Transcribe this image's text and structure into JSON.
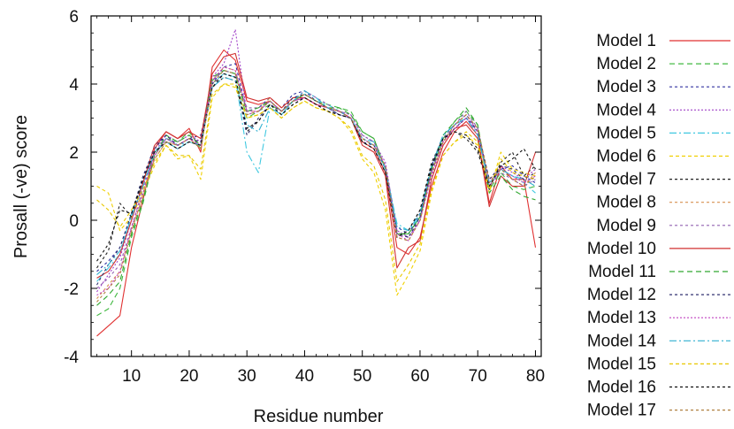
{
  "chart_data": {
    "type": "line",
    "title": "",
    "xlabel": "Residue number",
    "ylabel": "Prosall (-ve) score",
    "xlim": [
      3,
      81
    ],
    "ylim": [
      -4,
      6
    ],
    "xticks": [
      10,
      20,
      30,
      40,
      50,
      60,
      70,
      80
    ],
    "yticks": [
      -4,
      -2,
      0,
      2,
      4,
      6
    ],
    "grid": false,
    "legend_position": "right",
    "x": [
      4,
      6,
      8,
      10,
      12,
      14,
      16,
      18,
      20,
      22,
      24,
      26,
      28,
      30,
      32,
      34,
      36,
      38,
      40,
      42,
      44,
      46,
      48,
      50,
      52,
      54,
      56,
      58,
      60,
      62,
      64,
      66,
      68,
      70,
      72,
      74,
      76,
      78,
      80
    ],
    "series": [
      {
        "name": "Model 1",
        "color": "#e03030",
        "dash": "",
        "values": [
          -3.4,
          -3.1,
          -2.8,
          -0.8,
          0.6,
          2.1,
          2.6,
          2.4,
          2.7,
          2.0,
          4.5,
          5.0,
          4.7,
          3.5,
          3.4,
          3.5,
          3.2,
          3.5,
          3.6,
          3.4,
          3.3,
          3.2,
          3.0,
          2.3,
          2.1,
          1.4,
          -0.8,
          -1.0,
          -0.5,
          1.0,
          2.0,
          2.6,
          2.9,
          2.5,
          0.5,
          1.6,
          1.2,
          1.2,
          -0.8
        ]
      },
      {
        "name": "Model 2",
        "color": "#40b840",
        "dash": "6,4",
        "values": [
          -2.8,
          -2.6,
          -2.0,
          -0.5,
          0.5,
          1.9,
          2.4,
          2.3,
          2.6,
          2.1,
          4.1,
          4.4,
          4.3,
          3.0,
          3.2,
          3.4,
          3.2,
          3.5,
          3.7,
          3.5,
          3.4,
          3.3,
          3.2,
          2.6,
          2.4,
          1.5,
          -0.4,
          -0.4,
          0.1,
          1.4,
          2.4,
          2.9,
          3.2,
          2.8,
          0.9,
          1.4,
          1.0,
          0.9,
          1.0
        ]
      },
      {
        "name": "Model 3",
        "color": "#3030a0",
        "dash": "3,3",
        "values": [
          -1.5,
          -1.2,
          -0.8,
          0.2,
          1.2,
          2.2,
          2.5,
          2.2,
          2.4,
          2.5,
          4.0,
          4.5,
          4.6,
          3.2,
          3.3,
          3.6,
          3.3,
          3.7,
          3.8,
          3.5,
          3.3,
          3.1,
          3.0,
          2.4,
          2.2,
          1.6,
          -0.2,
          -0.4,
          0.2,
          1.6,
          2.5,
          2.8,
          3.1,
          2.6,
          1.0,
          1.5,
          1.6,
          1.3,
          1.1
        ]
      },
      {
        "name": "Model 4",
        "color": "#a040c8",
        "dash": "2,2",
        "values": [
          -2.1,
          -1.6,
          -1.1,
          0.0,
          1.0,
          2.0,
          2.5,
          2.3,
          2.5,
          2.3,
          4.2,
          4.6,
          5.6,
          3.1,
          3.2,
          3.5,
          3.2,
          3.5,
          3.6,
          3.4,
          3.3,
          3.2,
          3.1,
          2.5,
          2.3,
          1.7,
          -0.3,
          -0.5,
          0.0,
          1.3,
          2.3,
          2.7,
          3.0,
          2.7,
          1.1,
          1.6,
          1.4,
          1.2,
          1.5
        ]
      },
      {
        "name": "Model 5",
        "color": "#40c8e0",
        "dash": "8,3,2,3",
        "values": [
          -1.8,
          -1.4,
          -1.0,
          0.2,
          1.1,
          2.0,
          2.4,
          2.2,
          2.3,
          2.2,
          4.0,
          4.3,
          4.2,
          2.0,
          1.4,
          3.3,
          3.1,
          3.5,
          3.7,
          3.5,
          3.4,
          3.2,
          3.0,
          2.4,
          2.3,
          1.5,
          -0.1,
          -0.3,
          0.1,
          1.5,
          2.5,
          2.8,
          3.0,
          2.5,
          1.0,
          1.5,
          1.3,
          1.1,
          0.8
        ]
      },
      {
        "name": "Model 6",
        "color": "#f0d000",
        "dash": "4,3",
        "values": [
          1.0,
          0.8,
          -0.3,
          0.1,
          0.8,
          1.6,
          2.2,
          1.8,
          1.9,
          1.2,
          3.6,
          4.0,
          3.9,
          3.0,
          3.1,
          3.3,
          3.0,
          3.3,
          3.5,
          3.3,
          3.2,
          3.0,
          2.6,
          1.8,
          1.4,
          0.3,
          -2.2,
          -1.6,
          -0.9,
          0.8,
          1.9,
          2.3,
          2.5,
          2.2,
          0.8,
          2.0,
          1.5,
          1.4,
          1.3
        ]
      },
      {
        "name": "Model 7",
        "color": "#202020",
        "dash": "3,3",
        "values": [
          -1.4,
          -0.9,
          0.5,
          0.1,
          1.2,
          2.0,
          2.3,
          2.1,
          2.3,
          2.2,
          3.9,
          4.2,
          4.1,
          2.6,
          2.9,
          3.4,
          3.1,
          3.4,
          3.6,
          3.4,
          3.2,
          3.1,
          3.0,
          2.3,
          2.1,
          1.4,
          -0.5,
          -0.3,
          0.3,
          1.7,
          2.4,
          2.6,
          2.4,
          2.0,
          0.9,
          1.7,
          2.0,
          1.3,
          1.6
        ]
      },
      {
        "name": "Model 8",
        "color": "#d89050",
        "dash": "3,3",
        "values": [
          -2.3,
          -1.9,
          -1.5,
          -0.3,
          0.7,
          1.8,
          2.3,
          2.2,
          2.4,
          2.1,
          4.1,
          4.5,
          4.4,
          3.2,
          3.2,
          3.6,
          3.3,
          3.6,
          3.7,
          3.5,
          3.3,
          3.2,
          3.0,
          2.4,
          2.2,
          1.6,
          -0.5,
          -0.6,
          0.0,
          1.4,
          2.3,
          2.8,
          3.1,
          2.7,
          1.2,
          1.5,
          1.2,
          1.0,
          1.4
        ]
      },
      {
        "name": "Model 9",
        "color": "#9060b0",
        "dash": "3,3",
        "values": [
          -2.0,
          -1.7,
          -1.3,
          -0.2,
          0.9,
          1.9,
          2.4,
          2.2,
          2.4,
          2.2,
          4.1,
          4.4,
          4.3,
          3.3,
          3.3,
          3.5,
          3.2,
          3.5,
          3.8,
          3.6,
          3.4,
          3.2,
          3.1,
          2.5,
          2.3,
          1.6,
          -0.3,
          -0.5,
          0.0,
          1.5,
          2.4,
          2.8,
          3.2,
          2.7,
          1.0,
          1.4,
          1.2,
          1.0,
          1.2
        ]
      },
      {
        "name": "Model 10",
        "color": "#d03030",
        "dash": "",
        "values": [
          -1.7,
          -1.5,
          -1.0,
          0.0,
          1.1,
          2.2,
          2.6,
          2.4,
          2.6,
          2.4,
          4.3,
          4.8,
          4.9,
          3.6,
          3.5,
          3.6,
          3.3,
          3.6,
          3.6,
          3.4,
          3.3,
          3.2,
          3.0,
          2.2,
          2.0,
          1.3,
          -1.4,
          -0.8,
          -0.6,
          1.2,
          2.2,
          2.7,
          2.8,
          2.4,
          0.4,
          1.3,
          1.0,
          1.0,
          2.0
        ]
      },
      {
        "name": "Model 11",
        "color": "#30a830",
        "dash": "6,4",
        "values": [
          -2.5,
          -2.2,
          -1.8,
          -0.4,
          0.6,
          1.9,
          2.5,
          2.3,
          2.5,
          2.2,
          4.2,
          4.4,
          4.3,
          3.2,
          3.3,
          3.5,
          3.2,
          3.5,
          3.7,
          3.5,
          3.3,
          3.3,
          3.1,
          2.6,
          2.4,
          1.5,
          -0.4,
          -0.4,
          0.1,
          1.5,
          2.5,
          2.9,
          3.3,
          2.8,
          0.8,
          1.3,
          0.9,
          0.7,
          0.6
        ]
      },
      {
        "name": "Model 12",
        "color": "#303070",
        "dash": "3,3",
        "values": [
          -1.9,
          -1.3,
          -0.8,
          0.2,
          1.3,
          2.1,
          2.5,
          2.2,
          2.4,
          2.3,
          4.0,
          4.3,
          4.2,
          2.5,
          3.0,
          3.4,
          3.2,
          3.6,
          3.7,
          3.5,
          3.3,
          3.1,
          3.0,
          2.3,
          2.2,
          1.5,
          -0.4,
          -0.5,
          0.1,
          1.5,
          2.4,
          2.7,
          3.0,
          2.6,
          1.2,
          1.6,
          1.5,
          1.2,
          1.4
        ]
      },
      {
        "name": "Model 13",
        "color": "#c040c0",
        "dash": "2,2",
        "values": [
          -2.2,
          -2.0,
          -1.5,
          -0.2,
          0.8,
          1.9,
          2.4,
          2.2,
          2.4,
          2.2,
          4.1,
          4.5,
          4.4,
          3.2,
          3.2,
          3.5,
          3.2,
          3.5,
          3.6,
          3.4,
          3.3,
          3.2,
          3.0,
          2.4,
          2.2,
          1.6,
          -0.4,
          -0.6,
          0.0,
          1.4,
          2.3,
          2.7,
          3.0,
          2.6,
          1.0,
          1.5,
          1.3,
          1.1,
          1.3
        ]
      },
      {
        "name": "Model 14",
        "color": "#30b0d0",
        "dash": "8,3,2,3",
        "values": [
          -1.6,
          -1.3,
          -0.9,
          0.1,
          1.0,
          2.0,
          2.3,
          2.1,
          2.3,
          2.2,
          3.9,
          4.2,
          4.1,
          2.8,
          2.6,
          3.3,
          3.1,
          3.5,
          3.8,
          3.6,
          3.3,
          3.2,
          3.0,
          2.4,
          2.2,
          1.5,
          -0.2,
          -0.3,
          0.2,
          1.6,
          2.5,
          2.8,
          3.0,
          2.5,
          1.1,
          1.5,
          1.3,
          1.2,
          1.0
        ]
      },
      {
        "name": "Model 15",
        "color": "#e8c800",
        "dash": "4,3",
        "values": [
          0.6,
          0.3,
          -0.2,
          0.3,
          0.9,
          1.7,
          2.2,
          1.9,
          1.9,
          1.5,
          3.7,
          4.0,
          4.0,
          3.0,
          3.1,
          3.3,
          3.0,
          3.3,
          3.5,
          3.3,
          3.2,
          3.0,
          2.7,
          1.9,
          1.6,
          0.6,
          -1.8,
          -1.3,
          -0.7,
          0.9,
          1.9,
          2.3,
          2.6,
          2.3,
          0.9,
          1.8,
          1.4,
          1.3,
          1.2
        ]
      },
      {
        "name": "Model 16",
        "color": "#101010",
        "dash": "3,3",
        "values": [
          -1.2,
          -0.7,
          0.3,
          0.2,
          1.2,
          2.0,
          2.3,
          2.1,
          2.3,
          2.2,
          3.9,
          4.3,
          4.2,
          2.7,
          2.9,
          3.4,
          3.1,
          3.4,
          3.6,
          3.4,
          3.2,
          3.1,
          3.0,
          2.3,
          2.1,
          1.4,
          -0.5,
          -0.3,
          0.3,
          1.6,
          2.4,
          2.6,
          2.5,
          2.1,
          1.0,
          1.6,
          1.8,
          2.1,
          1.5
        ]
      },
      {
        "name": "Model 17",
        "color": "#b08040",
        "dash": "3,3",
        "values": [
          -2.4,
          -2.0,
          -1.6,
          -0.3,
          0.7,
          1.8,
          2.3,
          2.2,
          2.4,
          2.1,
          4.0,
          4.4,
          4.3,
          3.1,
          3.2,
          3.5,
          3.2,
          3.5,
          3.7,
          3.5,
          3.3,
          3.2,
          3.0,
          2.4,
          2.2,
          1.6,
          -0.5,
          -0.6,
          0.0,
          1.4,
          2.3,
          2.8,
          3.1,
          2.7,
          1.1,
          1.5,
          1.2,
          1.0,
          1.3
        ]
      }
    ]
  }
}
